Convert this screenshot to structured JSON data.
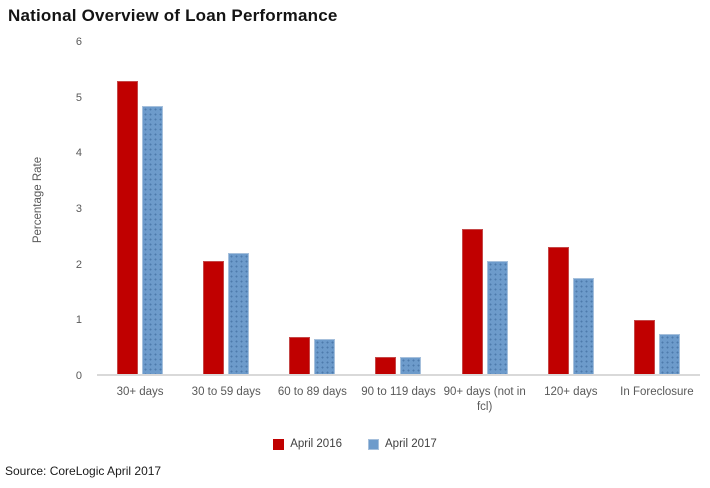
{
  "source_text": "Source: CoreLogic April 2017",
  "chart_data": {
    "type": "bar",
    "title": "National Overview of Loan Performance",
    "xlabel": "",
    "ylabel": "Percentage Rate",
    "ylim": [
      0,
      6
    ],
    "yticks": [
      0,
      1,
      2,
      3,
      4,
      5,
      6
    ],
    "grid": false,
    "legend_position": "bottom-center",
    "categories": [
      "30+ days",
      "30 to 59 days",
      "60 to 89 days",
      "90 to 119 days",
      "90+ days (not in fcl)",
      "120+ days",
      "In Foreclosure"
    ],
    "series": [
      {
        "name": "April 2016",
        "color": "#c00000",
        "values": [
          5.3,
          2.05,
          0.66,
          0.31,
          2.62,
          2.3,
          0.97
        ]
      },
      {
        "name": "April 2017",
        "color": "#6d9bcb",
        "values": [
          4.85,
          2.18,
          0.63,
          0.31,
          2.04,
          1.73,
          0.73
        ]
      }
    ]
  }
}
